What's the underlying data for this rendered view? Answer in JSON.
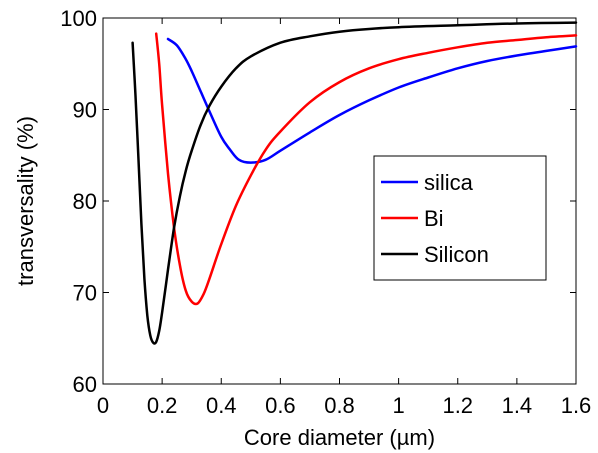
{
  "chart_data": {
    "type": "line",
    "title": "",
    "xlabel": "Core diameter (µm)",
    "ylabel": "transversality (%)",
    "xlim": [
      0,
      1.6
    ],
    "ylim": [
      60,
      100
    ],
    "xticks": [
      0,
      0.2,
      0.4,
      0.6,
      0.8,
      1,
      1.2,
      1.4,
      1.6
    ],
    "xtick_labels": [
      "0",
      "0.2",
      "0.4",
      "0.6",
      "0.8",
      "1",
      "1.2",
      "1.4",
      "1.6"
    ],
    "yticks": [
      60,
      70,
      80,
      90,
      100
    ],
    "ytick_labels": [
      "60",
      "70",
      "80",
      "90",
      "100"
    ],
    "grid": false,
    "legend_position": "center-right",
    "series": [
      {
        "name": "silica",
        "color": "#0000ff",
        "x": [
          0.22,
          0.25,
          0.28,
          0.3,
          0.33,
          0.36,
          0.4,
          0.43,
          0.46,
          0.5,
          0.55,
          0.6,
          0.7,
          0.8,
          0.9,
          1.0,
          1.1,
          1.2,
          1.3,
          1.4,
          1.5,
          1.6
        ],
        "y": [
          97.7,
          97.0,
          95.5,
          94.2,
          92.0,
          89.8,
          87.0,
          85.6,
          84.5,
          84.2,
          84.5,
          85.5,
          87.5,
          89.4,
          91.0,
          92.4,
          93.5,
          94.5,
          95.3,
          95.9,
          96.4,
          96.9
        ]
      },
      {
        "name": "Bi",
        "color": "#ff0000",
        "x": [
          0.18,
          0.19,
          0.2,
          0.22,
          0.24,
          0.26,
          0.28,
          0.3,
          0.32,
          0.34,
          0.36,
          0.4,
          0.45,
          0.5,
          0.55,
          0.6,
          0.7,
          0.8,
          0.9,
          1.0,
          1.1,
          1.2,
          1.3,
          1.4,
          1.5,
          1.6
        ],
        "y": [
          98.3,
          95.0,
          90.5,
          83.0,
          77.2,
          73.0,
          70.2,
          69.0,
          68.8,
          69.8,
          71.5,
          75.3,
          79.5,
          82.8,
          85.6,
          87.6,
          90.8,
          93.0,
          94.5,
          95.5,
          96.2,
          96.8,
          97.3,
          97.6,
          97.9,
          98.1
        ]
      },
      {
        "name": "Silicon",
        "color": "#000000",
        "x": [
          0.1,
          0.11,
          0.12,
          0.13,
          0.14,
          0.15,
          0.16,
          0.17,
          0.18,
          0.19,
          0.2,
          0.22,
          0.24,
          0.26,
          0.28,
          0.3,
          0.33,
          0.36,
          0.4,
          0.45,
          0.5,
          0.6,
          0.7,
          0.8,
          0.9,
          1.0,
          1.2,
          1.4,
          1.6
        ],
        "y": [
          97.3,
          91.5,
          84.5,
          77.5,
          71.5,
          67.5,
          65.3,
          64.5,
          64.6,
          65.8,
          67.8,
          72.5,
          77.0,
          80.5,
          83.3,
          85.5,
          88.3,
          90.4,
          92.5,
          94.5,
          95.8,
          97.3,
          98.0,
          98.5,
          98.8,
          99.0,
          99.2,
          99.4,
          99.5
        ]
      }
    ]
  }
}
